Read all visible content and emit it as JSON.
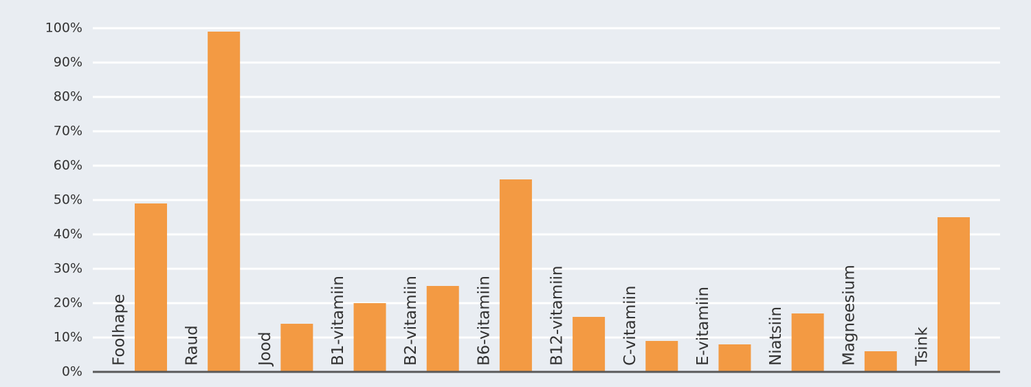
{
  "chart_data": {
    "type": "bar",
    "categories": [
      "Foolhape",
      "Raud",
      "Jood",
      "B1-vitamiin",
      "B2-vitamiin",
      "B6-vitamiin",
      "B12-vitamiin",
      "C-vitamiin",
      "E-vitamiin",
      "Niatsiin",
      "Magneesium",
      "Tsink"
    ],
    "values": [
      49,
      99,
      14,
      20,
      25,
      56,
      16,
      9,
      8,
      17,
      6,
      45
    ],
    "color": "#f39a43",
    "ylim": [
      0,
      100
    ],
    "yticks": [
      {
        "value": 0,
        "label": "0%"
      },
      {
        "value": 10,
        "label": "10%"
      },
      {
        "value": 20,
        "label": "20%"
      },
      {
        "value": 30,
        "label": "30%"
      },
      {
        "value": 40,
        "label": "40%"
      },
      {
        "value": 50,
        "label": "50%"
      },
      {
        "value": 60,
        "label": "60%"
      },
      {
        "value": 70,
        "label": "70%"
      },
      {
        "value": 80,
        "label": "80%"
      },
      {
        "value": 90,
        "label": "90%"
      },
      {
        "value": 100,
        "label": "100%"
      }
    ],
    "grid": true
  }
}
